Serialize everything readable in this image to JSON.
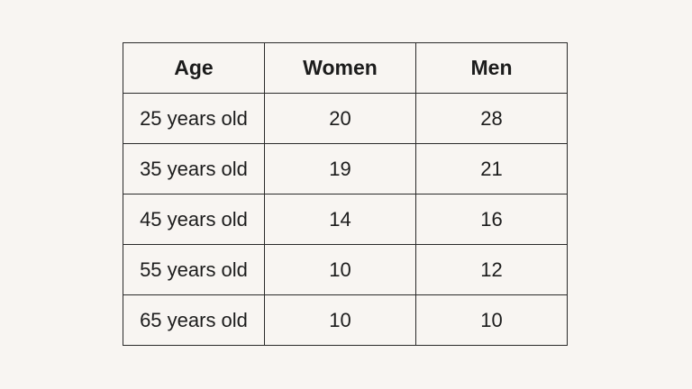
{
  "chart_data": {
    "type": "table",
    "columns": [
      "Age",
      "Women",
      "Men"
    ],
    "rows": [
      [
        "25 years old",
        "20",
        "28"
      ],
      [
        "35 years old",
        "19",
        "21"
      ],
      [
        "45 years old",
        "14",
        "16"
      ],
      [
        "55 years old",
        "10",
        "12"
      ],
      [
        "65 years old",
        "10",
        "10"
      ]
    ]
  }
}
